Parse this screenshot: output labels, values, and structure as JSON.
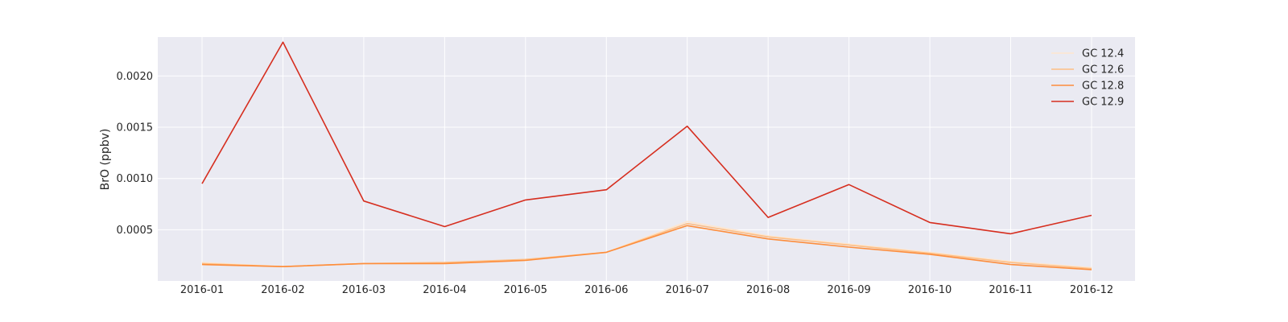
{
  "chart_data": {
    "type": "line",
    "title": "",
    "xlabel": "",
    "ylabel": "BrO (ppbv)",
    "x": [
      "2016-01",
      "2016-02",
      "2016-03",
      "2016-04",
      "2016-05",
      "2016-06",
      "2016-07",
      "2016-08",
      "2016-09",
      "2016-10",
      "2016-11",
      "2016-12"
    ],
    "ylim": [
      0.0,
      0.00238
    ],
    "yticks": [
      0.0005,
      0.001,
      0.0015,
      0.002
    ],
    "ytick_labels": [
      "0.0005",
      "0.0010",
      "0.0015",
      "0.0020"
    ],
    "grid": true,
    "legend_position": "top-right",
    "background_color": "#eaeaf2",
    "series": [
      {
        "name": "GC 12.4",
        "color": "#fee6ce",
        "values": [
          0.00018,
          0.00014,
          0.00017,
          0.00018,
          0.00021,
          0.00028,
          0.00058,
          0.00044,
          0.00036,
          0.00028,
          0.00019,
          0.00013
        ]
      },
      {
        "name": "GC 12.6",
        "color": "#fdbe85",
        "values": [
          0.00017,
          0.00014,
          0.00017,
          0.00018,
          0.00021,
          0.00028,
          0.00056,
          0.00043,
          0.00035,
          0.00027,
          0.00018,
          0.00012
        ]
      },
      {
        "name": "GC 12.8",
        "color": "#fd8d3c",
        "values": [
          0.00016,
          0.00014,
          0.00017,
          0.00017,
          0.0002,
          0.00028,
          0.00054,
          0.00041,
          0.00033,
          0.00026,
          0.00016,
          0.00011
        ]
      },
      {
        "name": "GC 12.9",
        "color": "#d62e1f",
        "values": [
          0.00095,
          0.00233,
          0.00078,
          0.00053,
          0.00079,
          0.00089,
          0.00151,
          0.00062,
          0.00094,
          0.00057,
          0.00046,
          0.00064
        ]
      }
    ]
  }
}
